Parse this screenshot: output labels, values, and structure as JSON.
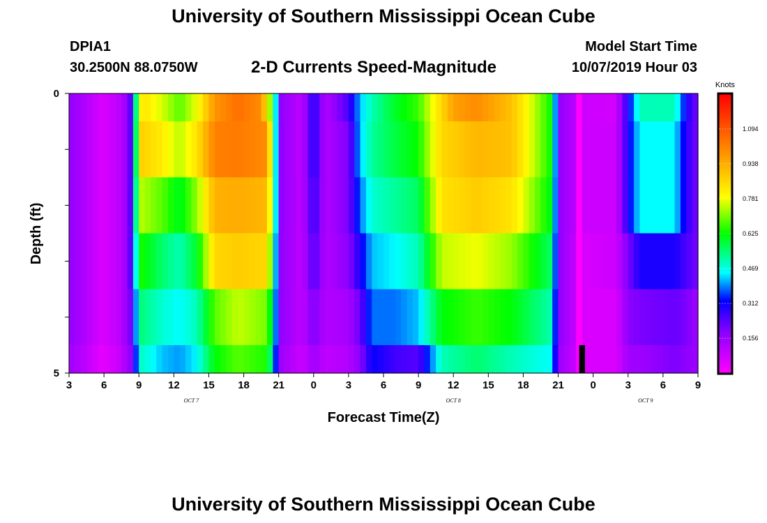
{
  "header": {
    "title": "University of Southern Mississippi Ocean Cube",
    "station_id": "DPIA1",
    "station_coords": "30.2500N 88.0750W",
    "plot_title": "2-D Currents Speed-Magnitude",
    "start_label": "Model Start Time",
    "start_value": "10/07/2019 Hour 03"
  },
  "footer": {
    "title": "University of Southern Mississippi Ocean Cube"
  },
  "chart_data": {
    "type": "heatmap",
    "title": "2-D Currents Speed-Magnitude",
    "xlabel": "Forecast Time(Z)",
    "ylabel": "Depth (ft)",
    "colorbar_label": "Knots",
    "x_range_hours": [
      0,
      54
    ],
    "y_range": [
      0,
      5
    ],
    "x_tick_labels": [
      "3",
      "6",
      "9",
      "12",
      "15",
      "18",
      "21",
      "0",
      "3",
      "6",
      "9",
      "12",
      "15",
      "18",
      "21",
      "0",
      "3",
      "6",
      "9"
    ],
    "y_tick_labels": [
      "0",
      "5"
    ],
    "y_minor_ticks": [
      1,
      2,
      3,
      4
    ],
    "day_labels": [
      {
        "text": "OCT 7",
        "hour": 10.5
      },
      {
        "text": "OCT 8",
        "hour": 33
      },
      {
        "text": "OCT 9",
        "hour": 49.5
      }
    ],
    "colorbar_ticks": [
      "1.094",
      "0.938",
      "0.781",
      "0.625",
      "0.469",
      "0.312",
      "0.156"
    ],
    "colorbar_tick_values": [
      1.094,
      0.938,
      0.781,
      0.625,
      0.469,
      0.312,
      0.156
    ],
    "value_range": [
      0,
      1.25
    ],
    "colors": {
      "magenta": "#ff00ff",
      "violet": "#8800ff",
      "blue": "#0000ff",
      "cyan": "#00ffff",
      "green": "#00ff00",
      "yellow": "#ffff00",
      "orange": "#ff9900",
      "red": "#ff0000",
      "missing": "#000000"
    },
    "layers": [
      {
        "depth_from": 0,
        "depth_to": 0.5,
        "keyframes": [
          [
            0,
            0.17
          ],
          [
            1.5,
            0.12
          ],
          [
            2.8,
            0.06
          ],
          [
            4.2,
            0.1
          ],
          [
            5,
            0.16
          ],
          [
            5.5,
            0.3
          ],
          [
            5.7,
            0.45
          ],
          [
            5.9,
            0.8
          ],
          [
            6.5,
            0.83
          ],
          [
            8,
            0.76
          ],
          [
            9.5,
            0.68
          ],
          [
            11,
            0.78
          ],
          [
            12.5,
            0.98
          ],
          [
            14.5,
            1.05
          ],
          [
            16.5,
            1.0
          ],
          [
            17.6,
            0.6
          ],
          [
            18,
            0.18
          ],
          [
            20,
            0.1
          ],
          [
            21,
            0.3
          ],
          [
            22,
            0.12
          ],
          [
            24,
            0.25
          ],
          [
            25,
            0.42
          ],
          [
            26,
            0.5
          ],
          [
            28,
            0.6
          ],
          [
            30,
            0.66
          ],
          [
            32,
            0.86
          ],
          [
            33,
            0.96
          ],
          [
            35,
            1.0
          ],
          [
            38,
            0.9
          ],
          [
            41.5,
            0.62
          ],
          [
            42,
            0.18
          ],
          [
            44,
            0.08
          ],
          [
            47,
            0.07
          ],
          [
            48,
            0.3
          ],
          [
            49,
            0.5
          ],
          [
            52,
            0.5
          ],
          [
            53,
            0.3
          ],
          [
            54,
            0.2
          ]
        ]
      },
      {
        "depth_from": 0.5,
        "depth_to": 1.5,
        "keyframes": [
          [
            0,
            0.17
          ],
          [
            1.5,
            0.12
          ],
          [
            2.8,
            0.06
          ],
          [
            4.2,
            0.1
          ],
          [
            5,
            0.16
          ],
          [
            5.5,
            0.3
          ],
          [
            5.7,
            0.45
          ],
          [
            5.9,
            0.88
          ],
          [
            8,
            0.82
          ],
          [
            9.5,
            0.74
          ],
          [
            11,
            0.84
          ],
          [
            12.5,
            1.02
          ],
          [
            14.5,
            1.03
          ],
          [
            17,
            1.0
          ],
          [
            17.6,
            0.6
          ],
          [
            18,
            0.18
          ],
          [
            20,
            0.1
          ],
          [
            21,
            0.3
          ],
          [
            22,
            0.12
          ],
          [
            24,
            0.2
          ],
          [
            25,
            0.42
          ],
          [
            26,
            0.52
          ],
          [
            28,
            0.58
          ],
          [
            30,
            0.63
          ],
          [
            32,
            0.86
          ],
          [
            35,
            0.92
          ],
          [
            38,
            0.9
          ],
          [
            41.5,
            0.62
          ],
          [
            42,
            0.18
          ],
          [
            44,
            0.08
          ],
          [
            47,
            0.08
          ],
          [
            48,
            0.3
          ],
          [
            49,
            0.45
          ],
          [
            52,
            0.45
          ],
          [
            53,
            0.28
          ],
          [
            54,
            0.2
          ]
        ]
      },
      {
        "depth_from": 1.5,
        "depth_to": 2.5,
        "keyframes": [
          [
            0,
            0.17
          ],
          [
            1.5,
            0.12
          ],
          [
            2.8,
            0.06
          ],
          [
            4.2,
            0.1
          ],
          [
            5,
            0.16
          ],
          [
            5.5,
            0.3
          ],
          [
            5.7,
            0.45
          ],
          [
            5.9,
            0.75
          ],
          [
            8,
            0.68
          ],
          [
            9.5,
            0.6
          ],
          [
            11,
            0.72
          ],
          [
            12.5,
            0.93
          ],
          [
            14.5,
            0.94
          ],
          [
            17,
            0.92
          ],
          [
            17.6,
            0.6
          ],
          [
            18,
            0.18
          ],
          [
            20,
            0.1
          ],
          [
            21,
            0.28
          ],
          [
            22,
            0.12
          ],
          [
            24,
            0.2
          ],
          [
            25,
            0.38
          ],
          [
            26,
            0.48
          ],
          [
            28,
            0.52
          ],
          [
            30,
            0.56
          ],
          [
            32,
            0.84
          ],
          [
            35,
            0.88
          ],
          [
            38,
            0.84
          ],
          [
            41.5,
            0.6
          ],
          [
            42,
            0.18
          ],
          [
            44,
            0.08
          ],
          [
            47,
            0.08
          ],
          [
            48,
            0.3
          ],
          [
            49,
            0.45
          ],
          [
            52,
            0.45
          ],
          [
            53,
            0.28
          ],
          [
            54,
            0.2
          ]
        ]
      },
      {
        "depth_from": 2.5,
        "depth_to": 3.5,
        "keyframes": [
          [
            0,
            0.17
          ],
          [
            1.5,
            0.12
          ],
          [
            2.8,
            0.06
          ],
          [
            4.2,
            0.1
          ],
          [
            5,
            0.16
          ],
          [
            5.5,
            0.3
          ],
          [
            5.7,
            0.4
          ],
          [
            5.9,
            0.65
          ],
          [
            8,
            0.55
          ],
          [
            9.5,
            0.5
          ],
          [
            11,
            0.6
          ],
          [
            12.5,
            0.86
          ],
          [
            14.5,
            0.88
          ],
          [
            17,
            0.86
          ],
          [
            17.6,
            0.55
          ],
          [
            18,
            0.18
          ],
          [
            20,
            0.1
          ],
          [
            21,
            0.25
          ],
          [
            22,
            0.12
          ],
          [
            24,
            0.18
          ],
          [
            25,
            0.3
          ],
          [
            26,
            0.42
          ],
          [
            28,
            0.45
          ],
          [
            30,
            0.5
          ],
          [
            32,
            0.75
          ],
          [
            35,
            0.78
          ],
          [
            38,
            0.72
          ],
          [
            41.5,
            0.55
          ],
          [
            42,
            0.18
          ],
          [
            44,
            0.06
          ],
          [
            47,
            0.08
          ],
          [
            48,
            0.2
          ],
          [
            49,
            0.3
          ],
          [
            52,
            0.3
          ],
          [
            53,
            0.25
          ],
          [
            54,
            0.2
          ]
        ]
      },
      {
        "depth_from": 3.5,
        "depth_to": 4.5,
        "keyframes": [
          [
            0,
            0.17
          ],
          [
            1.5,
            0.12
          ],
          [
            2.8,
            0.06
          ],
          [
            4.2,
            0.1
          ],
          [
            5,
            0.16
          ],
          [
            5.5,
            0.25
          ],
          [
            5.7,
            0.35
          ],
          [
            5.9,
            0.55
          ],
          [
            8,
            0.48
          ],
          [
            9.5,
            0.45
          ],
          [
            11,
            0.5
          ],
          [
            12.5,
            0.68
          ],
          [
            14.5,
            0.75
          ],
          [
            17,
            0.7
          ],
          [
            17.6,
            0.5
          ],
          [
            18,
            0.18
          ],
          [
            20,
            0.1
          ],
          [
            21,
            0.2
          ],
          [
            22,
            0.12
          ],
          [
            24,
            0.14
          ],
          [
            25,
            0.22
          ],
          [
            26,
            0.38
          ],
          [
            28,
            0.38
          ],
          [
            30,
            0.42
          ],
          [
            32,
            0.62
          ],
          [
            35,
            0.66
          ],
          [
            38,
            0.62
          ],
          [
            41.5,
            0.5
          ],
          [
            42,
            0.18
          ],
          [
            44,
            0.06
          ],
          [
            47,
            0.06
          ],
          [
            48,
            0.18
          ],
          [
            49,
            0.2
          ],
          [
            52,
            0.22
          ],
          [
            53,
            0.2
          ],
          [
            54,
            0.15
          ]
        ]
      },
      {
        "depth_from": 4.5,
        "depth_to": 5,
        "keyframes": [
          [
            0,
            0.15
          ],
          [
            1.5,
            0.1
          ],
          [
            2.8,
            0.04
          ],
          [
            4.2,
            0.08
          ],
          [
            5,
            0.14
          ],
          [
            5.5,
            0.2
          ],
          [
            5.7,
            0.3
          ],
          [
            5.9,
            0.5
          ],
          [
            8,
            0.42
          ],
          [
            9.5,
            0.4
          ],
          [
            11,
            0.45
          ],
          [
            12.5,
            0.62
          ],
          [
            14.5,
            0.68
          ],
          [
            17,
            0.64
          ],
          [
            17.6,
            0.45
          ],
          [
            18,
            0.16
          ],
          [
            20,
            0.08
          ],
          [
            21,
            0.15
          ],
          [
            22,
            0.1
          ],
          [
            24,
            0.12
          ],
          [
            25,
            0.18
          ],
          [
            26,
            0.32
          ],
          [
            28,
            0.26
          ],
          [
            30,
            0.24
          ],
          [
            32,
            0.5
          ],
          [
            35,
            0.55
          ],
          [
            38,
            0.5
          ],
          [
            41.5,
            0.45
          ],
          [
            42,
            0.16
          ],
          [
            44,
            0.06
          ],
          [
            47,
            0.06
          ],
          [
            48,
            0.15
          ],
          [
            49,
            0.15
          ],
          [
            52,
            0.2
          ],
          [
            53,
            0.18
          ],
          [
            54,
            0.15
          ]
        ]
      }
    ],
    "magenta_column_hour": 43.8,
    "missing_block": {
      "hour_from": 43.8,
      "hour_to": 44.3,
      "depth_from": 4.5,
      "depth_to": 5
    }
  }
}
